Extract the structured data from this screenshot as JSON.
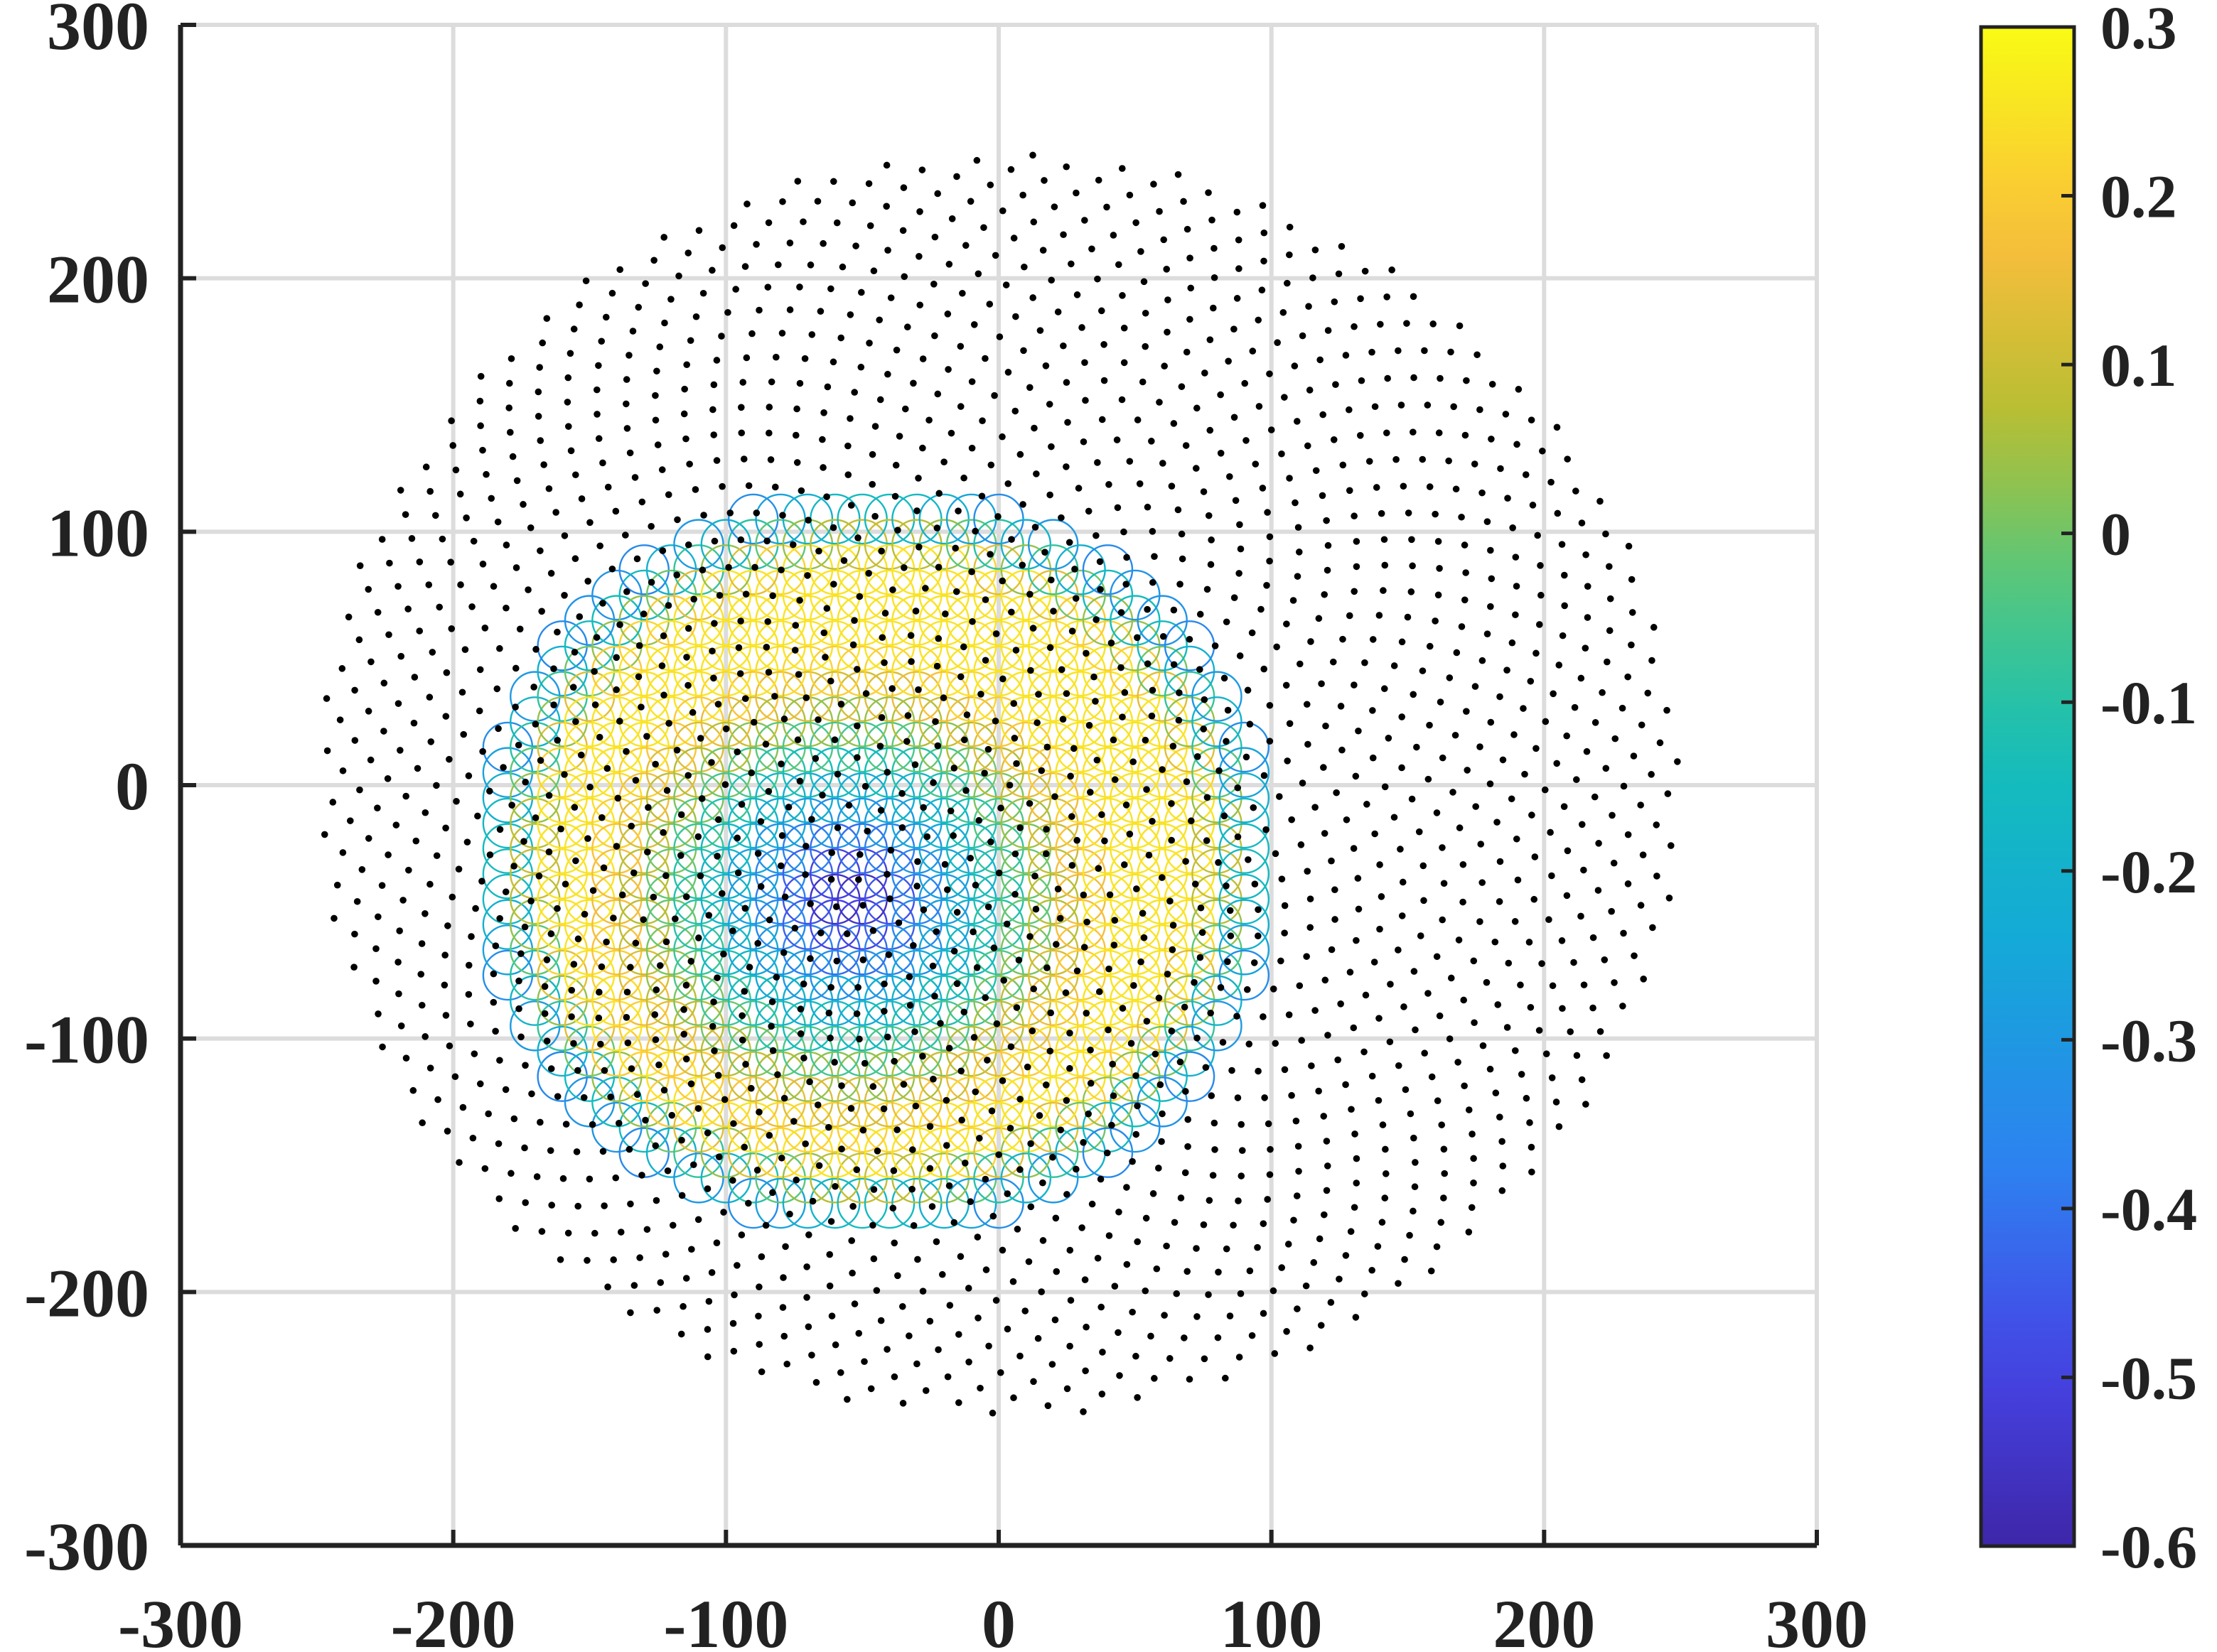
{
  "chart_data": {
    "type": "scatter",
    "title": "",
    "xlabel": "",
    "ylabel": "",
    "xlim": [
      -300,
      300
    ],
    "ylim": [
      -300,
      300
    ],
    "x_ticks": [
      -300,
      -200,
      -100,
      0,
      100,
      200,
      300
    ],
    "y_ticks": [
      -300,
      -200,
      -100,
      0,
      100,
      200,
      300
    ],
    "grid": true,
    "series": [
      {
        "kind": "point-grid",
        "marker": "filled-dot",
        "color": "#000000",
        "extent": {
          "center": [
            0,
            0
          ],
          "radius": 250
        },
        "pitch": 10,
        "point_count_approx": 1900
      },
      {
        "kind": "circle-grid",
        "marker": "open-circle",
        "colored_by": "colorbar",
        "circle_radius": 9,
        "pitch": 10,
        "extent": {
          "center": [
            -45,
            -30
          ],
          "radius": 145
        },
        "field": {
          "min_center": [
            -55,
            -45
          ],
          "min_value": -0.6,
          "ring_max_value": 0.25,
          "edge_value": -0.4
        }
      }
    ],
    "colorbar": {
      "colormap": "parula",
      "limits": [
        -0.6,
        0.3
      ],
      "ticks": [
        "0.3",
        "0.2",
        "0.1",
        "0",
        "-0.1",
        "-0.2",
        "-0.3",
        "-0.4",
        "-0.5",
        "-0.6"
      ]
    }
  }
}
